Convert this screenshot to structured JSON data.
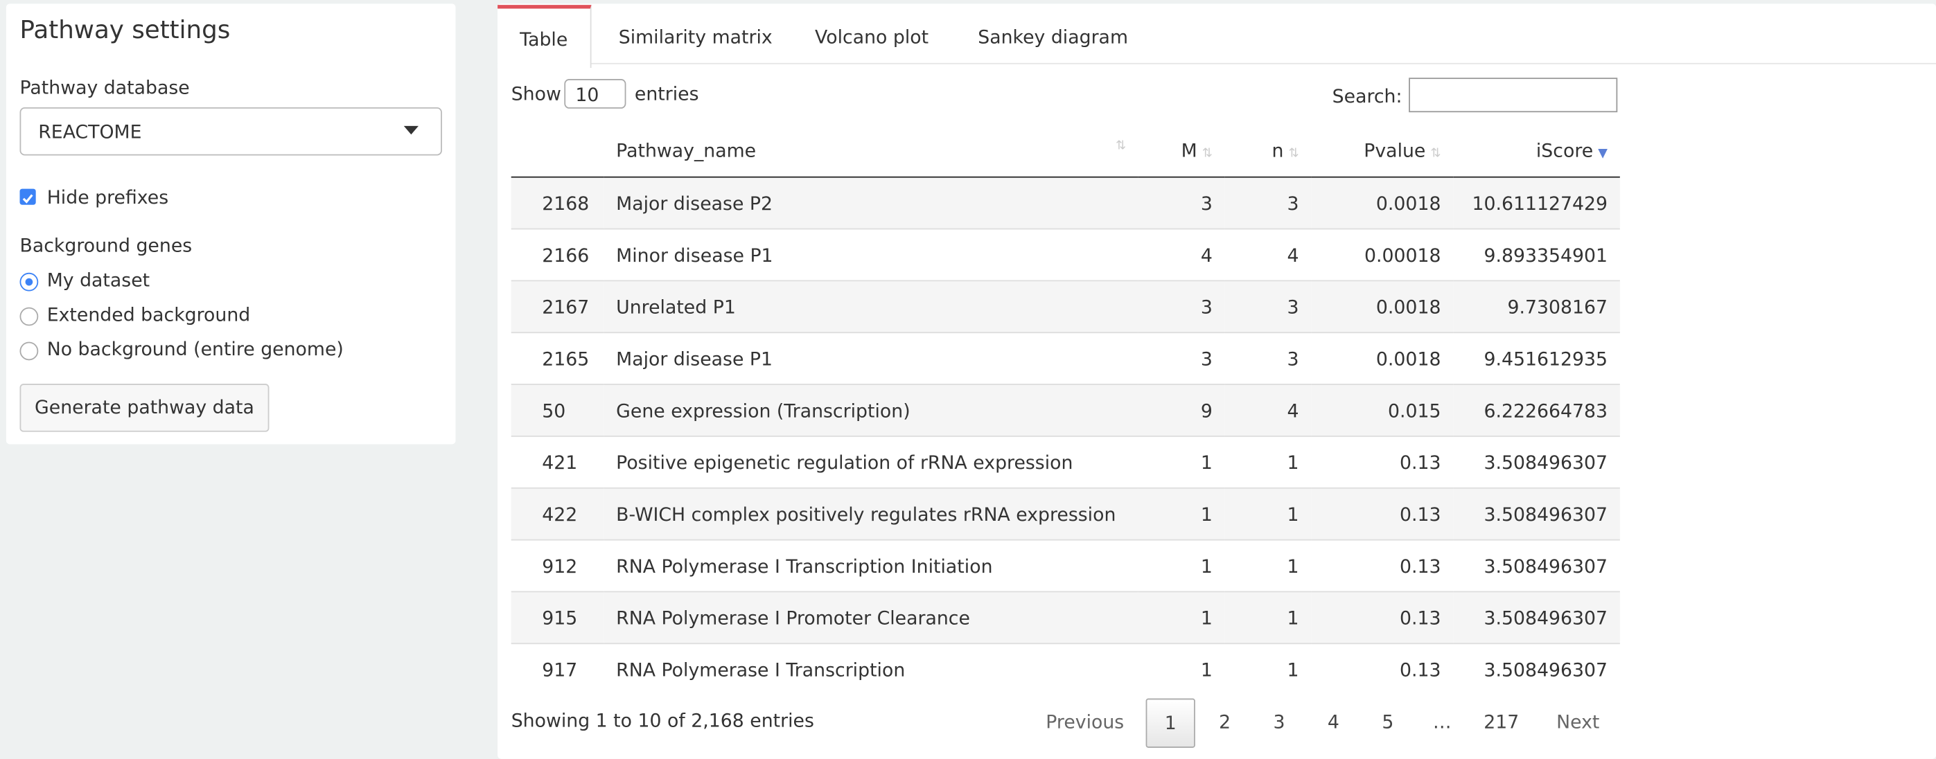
{
  "sidebar": {
    "title": "Pathway settings",
    "database_label": "Pathway database",
    "database_value": "REACTOME",
    "hide_prefixes": "Hide prefixes",
    "background_label": "Background genes",
    "background_options": [
      "My dataset",
      "Extended background",
      "No background (entire genome)"
    ],
    "button": "Generate pathway data"
  },
  "tabs": [
    "Table",
    "Similarity matrix",
    "Volcano plot",
    "Sankey diagram"
  ],
  "table": {
    "show_label": "Show",
    "length_value": "10",
    "entries_label": "entries",
    "search_label": "Search:",
    "columns": [
      "Pathway_name",
      "M",
      "n",
      "Pvalue",
      "iScore"
    ],
    "rows": [
      [
        "2168",
        "Major disease P2",
        "3",
        "3",
        "0.0018",
        "10.611127429"
      ],
      [
        "2166",
        "Minor disease P1",
        "4",
        "4",
        "0.00018",
        "9.893354901"
      ],
      [
        "2167",
        "Unrelated P1",
        "3",
        "3",
        "0.0018",
        "9.7308167"
      ],
      [
        "2165",
        "Major disease P1",
        "3",
        "3",
        "0.0018",
        "9.451612935"
      ],
      [
        "50",
        "Gene expression (Transcription)",
        "9",
        "4",
        "0.015",
        "6.222664783"
      ],
      [
        "421",
        "Positive epigenetic regulation of rRNA expression",
        "1",
        "1",
        "0.13",
        "3.508496307"
      ],
      [
        "422",
        "B-WICH complex positively regulates rRNA expression",
        "1",
        "1",
        "0.13",
        "3.508496307"
      ],
      [
        "912",
        "RNA Polymerase I Transcription Initiation",
        "1",
        "1",
        "0.13",
        "3.508496307"
      ],
      [
        "915",
        "RNA Polymerase I Promoter Clearance",
        "1",
        "1",
        "0.13",
        "3.508496307"
      ],
      [
        "917",
        "RNA Polymerase I Transcription",
        "1",
        "1",
        "0.13",
        "3.508496307"
      ]
    ],
    "info": "Showing 1 to 10 of 2,168 entries",
    "pagination": [
      "Previous",
      "1",
      "2",
      "3",
      "4",
      "5",
      "…",
      "217",
      "Next"
    ]
  }
}
